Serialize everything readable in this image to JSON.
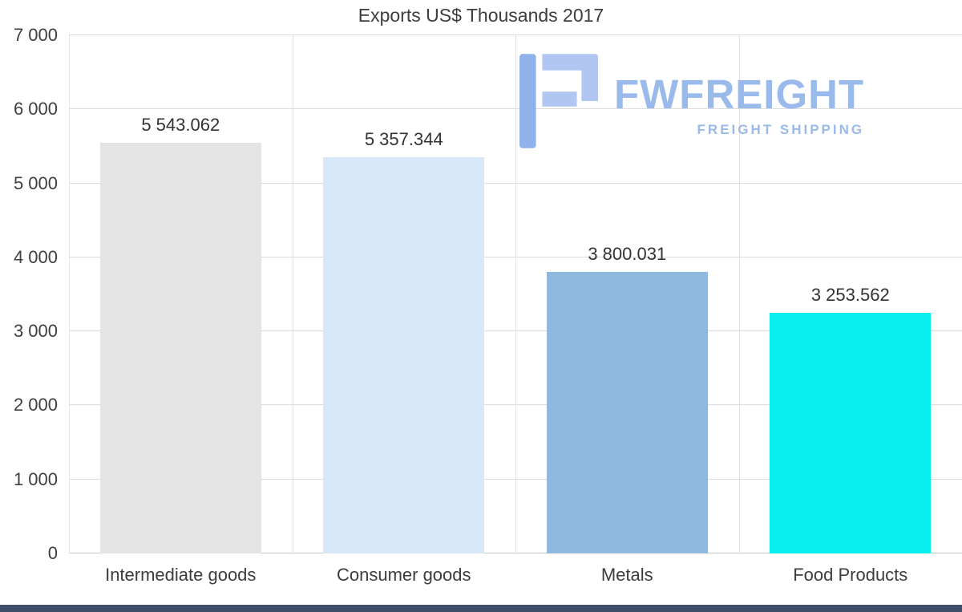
{
  "chart_data": {
    "type": "bar",
    "title": "Exports US$ Thousands 2017",
    "categories": [
      "Intermediate goods",
      "Consumer goods",
      "Metals",
      "Food Products"
    ],
    "values": [
      5543.062,
      5357.344,
      3800.031,
      3253.562
    ],
    "value_labels": [
      "5 543.062",
      "5 357.344",
      "3 800.031",
      "3 253.562"
    ],
    "bar_colors": [
      "#e4e4e4",
      "#d8e8f8",
      "#8eb8de",
      "#0aeff0"
    ],
    "ylim": [
      0,
      7000
    ],
    "ytick_values": [
      7000,
      6000,
      5000,
      4000,
      3000,
      2000,
      1000,
      0
    ],
    "ytick_labels": [
      "7 000",
      "6 000",
      "5 000",
      "4 000",
      "3 000",
      "2 000",
      "1 000",
      "0"
    ],
    "grid": true,
    "legend": "none"
  },
  "watermark": {
    "brand": "FWFREIGHT",
    "tagline": "FREIGHT SHIPPING",
    "icon": "fwfreight-f-logo-icon"
  },
  "colors": {
    "watermark_text": "#9bbaec",
    "watermark_icon_dark": "#8fb2ea",
    "watermark_icon_light": "#b1c7f2",
    "footer_bar": "#3e4d68",
    "gridline": "#dcdcdc",
    "title_text": "#3d3d3d"
  }
}
